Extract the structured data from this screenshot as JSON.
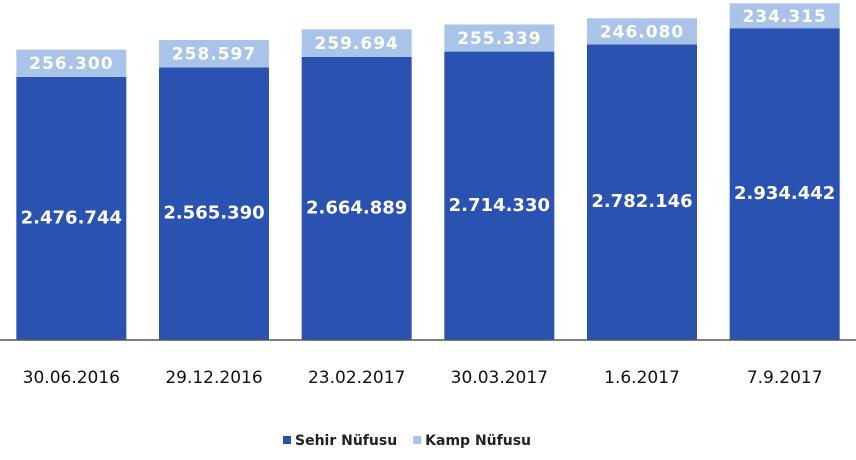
{
  "chart_data": {
    "type": "stacked_bar",
    "categories": [
      "30.06.2016",
      "29.12.2016",
      "23.02.2017",
      "30.03.2017",
      "1.6.2017",
      "7.9.2017"
    ],
    "series": [
      {
        "name": "Sehir Nüfusu",
        "color": "#2a52b0",
        "values": [
          2476744,
          2565390,
          2664889,
          2714330,
          2782146,
          2934442
        ],
        "value_labels": [
          "2.476.744",
          "2.565.390",
          "2.664.889",
          "2.714.330",
          "2.782.146",
          "2.934.442"
        ]
      },
      {
        "name": "Kamp Nüfusu",
        "color": "#a9c4e8",
        "values": [
          256300,
          258597,
          259694,
          255339,
          246080,
          234315
        ],
        "value_labels": [
          "256.300",
          "258.597",
          "259.694",
          "255.339",
          "246.080",
          "234.315"
        ]
      }
    ],
    "ylim": [
      0,
      3200000
    ],
    "legend": "bottom"
  }
}
